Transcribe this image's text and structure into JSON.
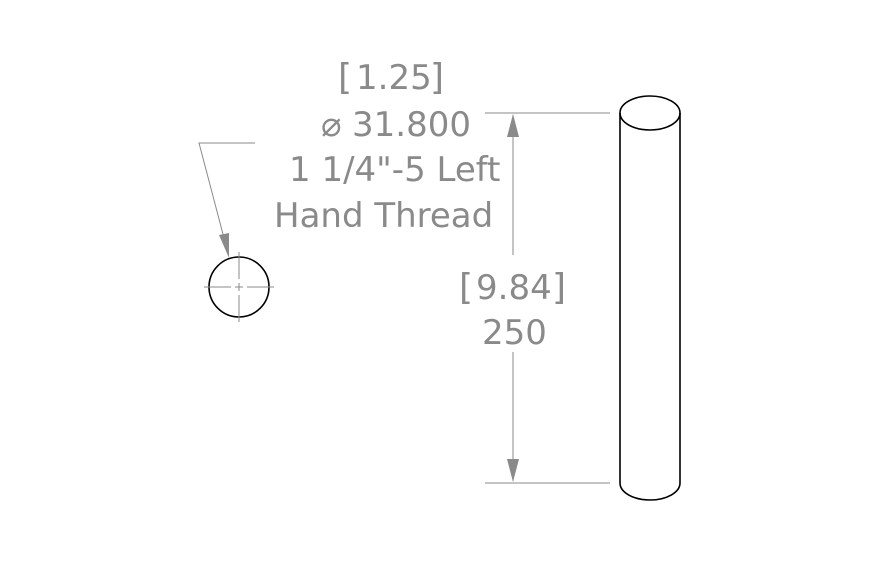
{
  "thread_callout": {
    "imperial_diameter": "1.25",
    "metric_diameter": "31.800",
    "diameter_symbol": "⌀",
    "thread_spec_line1": "1 1/4\"-5 Left",
    "thread_spec_line2": "Hand Thread"
  },
  "length_dimension": {
    "imperial_length": "9.84",
    "metric_length": "250"
  }
}
